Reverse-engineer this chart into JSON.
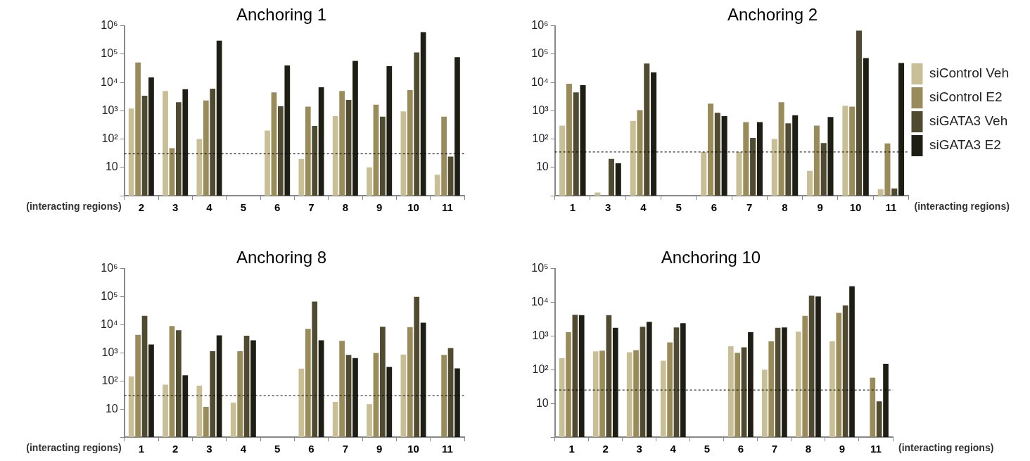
{
  "chart_data": [
    {
      "type": "bar",
      "title": "Anchoring 1",
      "xlabel": "(interacting regions)",
      "categories": [
        "2",
        "3",
        "4",
        "5",
        "6",
        "7",
        "8",
        "9",
        "10",
        "11"
      ],
      "log": true,
      "grid": false,
      "legend": false,
      "ylim": [
        1,
        1000000
      ],
      "yticks": [
        {
          "value": 1,
          "label": null
        },
        {
          "value": 10,
          "label": "10"
        },
        {
          "value": 100,
          "label": "10²"
        },
        {
          "value": 1000,
          "label": "10³"
        },
        {
          "value": 10000,
          "label": "10⁴"
        },
        {
          "value": 100000,
          "label": "10⁵"
        },
        {
          "value": 1000000,
          "label": "10⁶"
        }
      ],
      "ref_lines": [
        {
          "axis": "y",
          "value": 30,
          "line_style": "dashed"
        }
      ],
      "series": [
        {
          "color": "#c8bf96",
          "values": [
            1200,
            5000,
            100,
            null,
            200,
            20,
            650,
            10,
            950,
            5.5
          ]
        },
        {
          "color": "#9a8c5a",
          "values": [
            51000,
            48,
            2300,
            null,
            4500,
            1400,
            5000,
            1650,
            5400,
            620
          ]
        },
        {
          "color": "#4f4a30",
          "values": [
            3400,
            2000,
            6000,
            null,
            1450,
            290,
            2400,
            620,
            115000,
            24
          ]
        },
        {
          "color": "#1e1e14",
          "values": [
            15000,
            5800,
            300000,
            null,
            40000,
            6800,
            58000,
            38000,
            600000,
            78000
          ]
        }
      ]
    },
    {
      "type": "bar",
      "title": "Anchoring 2",
      "xlabel": "(interacting regions)",
      "categories": [
        "1",
        "3",
        "4",
        "5",
        "6",
        "7",
        "8",
        "9",
        "10",
        "11"
      ],
      "log": true,
      "grid": false,
      "legend": "right",
      "ylim": [
        1,
        1000000
      ],
      "yticks": [
        {
          "value": 1,
          "label": null
        },
        {
          "value": 10,
          "label": "10"
        },
        {
          "value": 100,
          "label": "10²"
        },
        {
          "value": 1000,
          "label": "10³"
        },
        {
          "value": 10000,
          "label": "10⁴"
        },
        {
          "value": 100000,
          "label": "10⁵"
        },
        {
          "value": 1000000,
          "label": "10⁶"
        }
      ],
      "ref_lines": [
        {
          "axis": "y",
          "value": 35,
          "line_style": "dashed"
        }
      ],
      "series": [
        {
          "name": "siControl Veh",
          "color": "#c8bf96",
          "values": [
            300,
            1.3,
            440,
            null,
            35,
            35,
            100,
            7.5,
            1500,
            1.7
          ]
        },
        {
          "name": "siControl E2",
          "color": "#9a8c5a",
          "values": [
            9000,
            null,
            1050,
            null,
            1800,
            400,
            2000,
            300,
            1400,
            70
          ]
        },
        {
          "name": "siGATA3 Veh",
          "color": "#4f4a30",
          "values": [
            4500,
            20,
            47000,
            null,
            850,
            110,
            360,
            72,
            680000,
            1.8
          ]
        },
        {
          "name": "siGATA3 E2",
          "color": "#1e1e14",
          "values": [
            8000,
            14,
            23000,
            null,
            650,
            400,
            700,
            600,
            73000,
            49000
          ]
        }
      ]
    },
    {
      "type": "bar",
      "title": "Anchoring 8",
      "xlabel": "(interacting regions)",
      "categories": [
        "1",
        "2",
        "3",
        "4",
        "5",
        "6",
        "7",
        "9",
        "10",
        "11"
      ],
      "log": true,
      "grid": false,
      "legend": false,
      "ylim": [
        1,
        1000000
      ],
      "yticks": [
        {
          "value": 1,
          "label": null
        },
        {
          "value": 10,
          "label": "10"
        },
        {
          "value": 100,
          "label": "10²"
        },
        {
          "value": 1000,
          "label": "10³"
        },
        {
          "value": 10000,
          "label": "10⁴"
        },
        {
          "value": 100000,
          "label": "10⁵"
        },
        {
          "value": 1000000,
          "label": "10⁶"
        }
      ],
      "ref_lines": [
        {
          "axis": "y",
          "value": 30,
          "line_style": "dashed"
        }
      ],
      "series": [
        {
          "color": "#c8bf96",
          "values": [
            145,
            74,
            68,
            17,
            null,
            275,
            18,
            15,
            870,
            null
          ]
        },
        {
          "color": "#9a8c5a",
          "values": [
            4400,
            9000,
            12,
            1150,
            null,
            7200,
            2700,
            1000,
            8300,
            850
          ]
        },
        {
          "color": "#4f4a30",
          "values": [
            21000,
            6400,
            1150,
            4100,
            null,
            67000,
            850,
            8500,
            100000,
            1500
          ]
        },
        {
          "color": "#1e1e14",
          "values": [
            2000,
            160,
            4200,
            2800,
            null,
            2800,
            650,
            320,
            12000,
            280
          ]
        }
      ]
    },
    {
      "type": "bar",
      "title": "Anchoring 10",
      "xlabel": "(interacting regions)",
      "categories": [
        "1",
        "2",
        "3",
        "4",
        "5",
        "6",
        "7",
        "8",
        "9",
        "11"
      ],
      "log": true,
      "grid": false,
      "legend": false,
      "ylim": [
        1,
        100000
      ],
      "yticks": [
        {
          "value": 1,
          "label": null
        },
        {
          "value": 10,
          "label": "10"
        },
        {
          "value": 100,
          "label": "10²"
        },
        {
          "value": 1000,
          "label": "10³"
        },
        {
          "value": 10000,
          "label": "10⁴"
        },
        {
          "value": 100000,
          "label": "10⁵"
        }
      ],
      "ref_lines": [
        {
          "axis": "y",
          "value": 25,
          "line_style": "dashed"
        }
      ],
      "series": [
        {
          "color": "#c8bf96",
          "values": [
            220,
            350,
            330,
            185,
            null,
            500,
            100,
            1350,
            700,
            null
          ]
        },
        {
          "color": "#9a8c5a",
          "values": [
            1300,
            370,
            380,
            650,
            null,
            320,
            700,
            4000,
            4900,
            58
          ]
        },
        {
          "color": "#4f4a30",
          "values": [
            4300,
            4200,
            1900,
            1800,
            null,
            460,
            1750,
            16000,
            8100,
            11.5
          ]
        },
        {
          "color": "#1e1e14",
          "values": [
            4200,
            1750,
            2650,
            2400,
            null,
            1300,
            1800,
            15000,
            30000,
            150
          ]
        }
      ]
    }
  ]
}
